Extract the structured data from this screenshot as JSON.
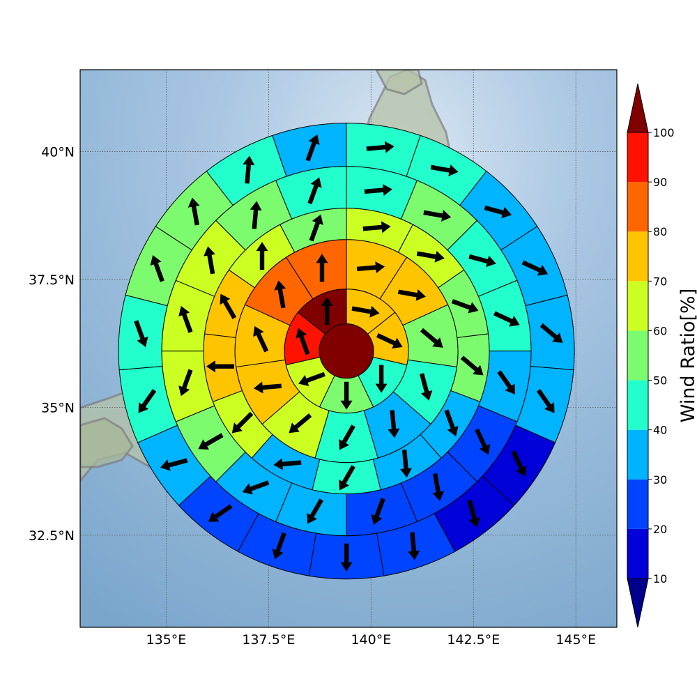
{
  "chart_data": {
    "type": "polar-sector-map",
    "title": "",
    "x_ticks": [
      {
        "value": 135,
        "label": "135°E"
      },
      {
        "value": 137.5,
        "label": "137.5°E"
      },
      {
        "value": 140,
        "label": "140°E"
      },
      {
        "value": 142.5,
        "label": "142.5°E"
      },
      {
        "value": 145,
        "label": "145°E"
      }
    ],
    "y_ticks": [
      {
        "value": 32.5,
        "label": "32.5°N"
      },
      {
        "value": 35,
        "label": "35°N"
      },
      {
        "value": 37.5,
        "label": "37.5°N"
      },
      {
        "value": 40,
        "label": "40°N"
      }
    ],
    "xlim": [
      132.9,
      146.0
    ],
    "ylim": [
      30.7,
      41.6
    ],
    "grid": true,
    "center": {
      "lon": 139.4,
      "lat": 36.1
    },
    "colorbar": {
      "label": "Wind Ratio[%]",
      "ticks": [
        10,
        20,
        30,
        40,
        50,
        60,
        70,
        80,
        90,
        100
      ],
      "bin_colors": [
        "#0000d8",
        "#0044ff",
        "#00b4ff",
        "#22ffcc",
        "#7dfb6e",
        "#ccff22",
        "#ffc400",
        "#ff6600",
        "#ff1300"
      ],
      "under_color": "#00008b",
      "over_color": "#800000",
      "extend": "both"
    },
    "center_cell": {
      "value": 100
    },
    "rings": [
      {
        "name": "ring 1",
        "sectors": [
          {
            "value": 75,
            "arrow_deg": 100
          },
          {
            "value": 75,
            "arrow_deg": 115
          },
          {
            "value": 45,
            "arrow_deg": 180
          },
          {
            "value": 55,
            "arrow_deg": 180
          },
          {
            "value": 65,
            "arrow_deg": 250
          },
          {
            "value": 95,
            "arrow_deg": 340
          },
          {
            "value": 100,
            "arrow_deg": 0
          }
        ]
      },
      {
        "name": "ring 2",
        "sectors": [
          {
            "value": 75,
            "arrow_deg": 85
          },
          {
            "value": 75,
            "arrow_deg": 100
          },
          {
            "value": 55,
            "arrow_deg": 130
          },
          {
            "value": 45,
            "arrow_deg": 165
          },
          {
            "value": 35,
            "arrow_deg": 175
          },
          {
            "value": 45,
            "arrow_deg": 210
          },
          {
            "value": 65,
            "arrow_deg": 230
          },
          {
            "value": 75,
            "arrow_deg": 265
          },
          {
            "value": 75,
            "arrow_deg": 335
          },
          {
            "value": 85,
            "arrow_deg": 350
          },
          {
            "value": 85,
            "arrow_deg": 0
          }
        ]
      },
      {
        "name": "ring 3",
        "sectors": [
          {
            "value": 65,
            "arrow_deg": 85
          },
          {
            "value": 65,
            "arrow_deg": 100
          },
          {
            "value": 55,
            "arrow_deg": 110
          },
          {
            "value": 55,
            "arrow_deg": 130
          },
          {
            "value": 35,
            "arrow_deg": 160
          },
          {
            "value": 35,
            "arrow_deg": 175
          },
          {
            "value": 45,
            "arrow_deg": 210
          },
          {
            "value": 35,
            "arrow_deg": 265
          },
          {
            "value": 65,
            "arrow_deg": 225
          },
          {
            "value": 75,
            "arrow_deg": 270
          },
          {
            "value": 75,
            "arrow_deg": 330
          },
          {
            "value": 65,
            "arrow_deg": 0
          },
          {
            "value": 55,
            "arrow_deg": 20
          }
        ]
      },
      {
        "name": "ring 4",
        "sectors": [
          {
            "value": 45,
            "arrow_deg": 85
          },
          {
            "value": 55,
            "arrow_deg": 100
          },
          {
            "value": 45,
            "arrow_deg": 105
          },
          {
            "value": 45,
            "arrow_deg": 115
          },
          {
            "value": 35,
            "arrow_deg": 145
          },
          {
            "value": 25,
            "arrow_deg": 155
          },
          {
            "value": 25,
            "arrow_deg": 170
          },
          {
            "value": 25,
            "arrow_deg": 200
          },
          {
            "value": 35,
            "arrow_deg": 210
          },
          {
            "value": 35,
            "arrow_deg": 250
          },
          {
            "value": 55,
            "arrow_deg": 240
          },
          {
            "value": 65,
            "arrow_deg": 200
          },
          {
            "value": 65,
            "arrow_deg": 340
          },
          {
            "value": 65,
            "arrow_deg": 350
          },
          {
            "value": 55,
            "arrow_deg": 5
          },
          {
            "value": 45,
            "arrow_deg": 20
          }
        ]
      },
      {
        "name": "ring 5",
        "sectors": [
          {
            "value": 45,
            "arrow_deg": 85
          },
          {
            "value": 45,
            "arrow_deg": 100
          },
          {
            "value": 35,
            "arrow_deg": 105
          },
          {
            "value": 35,
            "arrow_deg": 115
          },
          {
            "value": 35,
            "arrow_deg": 130
          },
          {
            "value": 35,
            "arrow_deg": 145
          },
          {
            "value": 15,
            "arrow_deg": 155
          },
          {
            "value": 15,
            "arrow_deg": 165
          },
          {
            "value": 25,
            "arrow_deg": 175
          },
          {
            "value": 25,
            "arrow_deg": 180
          },
          {
            "value": 25,
            "arrow_deg": 200
          },
          {
            "value": 25,
            "arrow_deg": 235
          },
          {
            "value": 35,
            "arrow_deg": 255
          },
          {
            "value": 45,
            "arrow_deg": 215
          },
          {
            "value": 45,
            "arrow_deg": 160
          },
          {
            "value": 55,
            "arrow_deg": 340
          },
          {
            "value": 55,
            "arrow_deg": 350
          },
          {
            "value": 45,
            "arrow_deg": 5
          },
          {
            "value": 35,
            "arrow_deg": 20
          }
        ]
      }
    ]
  }
}
